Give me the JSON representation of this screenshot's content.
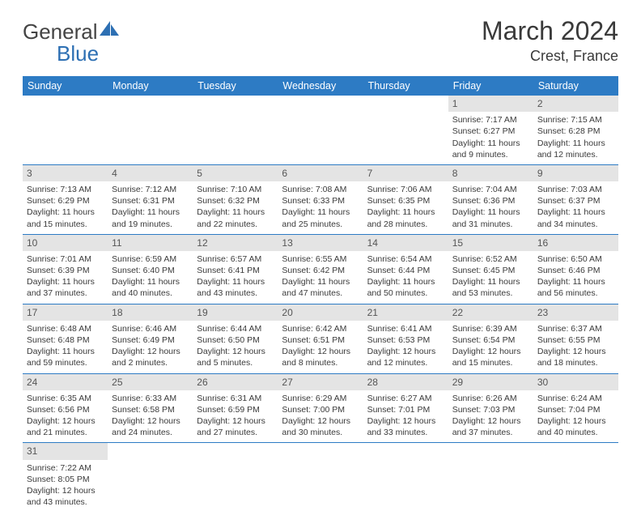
{
  "brand": {
    "part1": "General",
    "part2": "Blue"
  },
  "title": "March 2024",
  "location": "Crest, France",
  "colors": {
    "accent": "#2d7bc4",
    "daynum_bg": "#e4e4e4",
    "text": "#3a3a3a"
  },
  "weekdays": [
    "Sunday",
    "Monday",
    "Tuesday",
    "Wednesday",
    "Thursday",
    "Friday",
    "Saturday"
  ],
  "weeks": [
    [
      null,
      null,
      null,
      null,
      null,
      {
        "n": "1",
        "sr": "7:17 AM",
        "ss": "6:27 PM",
        "dl": "11 hours and 9 minutes."
      },
      {
        "n": "2",
        "sr": "7:15 AM",
        "ss": "6:28 PM",
        "dl": "11 hours and 12 minutes."
      }
    ],
    [
      {
        "n": "3",
        "sr": "7:13 AM",
        "ss": "6:29 PM",
        "dl": "11 hours and 15 minutes."
      },
      {
        "n": "4",
        "sr": "7:12 AM",
        "ss": "6:31 PM",
        "dl": "11 hours and 19 minutes."
      },
      {
        "n": "5",
        "sr": "7:10 AM",
        "ss": "6:32 PM",
        "dl": "11 hours and 22 minutes."
      },
      {
        "n": "6",
        "sr": "7:08 AM",
        "ss": "6:33 PM",
        "dl": "11 hours and 25 minutes."
      },
      {
        "n": "7",
        "sr": "7:06 AM",
        "ss": "6:35 PM",
        "dl": "11 hours and 28 minutes."
      },
      {
        "n": "8",
        "sr": "7:04 AM",
        "ss": "6:36 PM",
        "dl": "11 hours and 31 minutes."
      },
      {
        "n": "9",
        "sr": "7:03 AM",
        "ss": "6:37 PM",
        "dl": "11 hours and 34 minutes."
      }
    ],
    [
      {
        "n": "10",
        "sr": "7:01 AM",
        "ss": "6:39 PM",
        "dl": "11 hours and 37 minutes."
      },
      {
        "n": "11",
        "sr": "6:59 AM",
        "ss": "6:40 PM",
        "dl": "11 hours and 40 minutes."
      },
      {
        "n": "12",
        "sr": "6:57 AM",
        "ss": "6:41 PM",
        "dl": "11 hours and 43 minutes."
      },
      {
        "n": "13",
        "sr": "6:55 AM",
        "ss": "6:42 PM",
        "dl": "11 hours and 47 minutes."
      },
      {
        "n": "14",
        "sr": "6:54 AM",
        "ss": "6:44 PM",
        "dl": "11 hours and 50 minutes."
      },
      {
        "n": "15",
        "sr": "6:52 AM",
        "ss": "6:45 PM",
        "dl": "11 hours and 53 minutes."
      },
      {
        "n": "16",
        "sr": "6:50 AM",
        "ss": "6:46 PM",
        "dl": "11 hours and 56 minutes."
      }
    ],
    [
      {
        "n": "17",
        "sr": "6:48 AM",
        "ss": "6:48 PM",
        "dl": "11 hours and 59 minutes."
      },
      {
        "n": "18",
        "sr": "6:46 AM",
        "ss": "6:49 PM",
        "dl": "12 hours and 2 minutes."
      },
      {
        "n": "19",
        "sr": "6:44 AM",
        "ss": "6:50 PM",
        "dl": "12 hours and 5 minutes."
      },
      {
        "n": "20",
        "sr": "6:42 AM",
        "ss": "6:51 PM",
        "dl": "12 hours and 8 minutes."
      },
      {
        "n": "21",
        "sr": "6:41 AM",
        "ss": "6:53 PM",
        "dl": "12 hours and 12 minutes."
      },
      {
        "n": "22",
        "sr": "6:39 AM",
        "ss": "6:54 PM",
        "dl": "12 hours and 15 minutes."
      },
      {
        "n": "23",
        "sr": "6:37 AM",
        "ss": "6:55 PM",
        "dl": "12 hours and 18 minutes."
      }
    ],
    [
      {
        "n": "24",
        "sr": "6:35 AM",
        "ss": "6:56 PM",
        "dl": "12 hours and 21 minutes."
      },
      {
        "n": "25",
        "sr": "6:33 AM",
        "ss": "6:58 PM",
        "dl": "12 hours and 24 minutes."
      },
      {
        "n": "26",
        "sr": "6:31 AM",
        "ss": "6:59 PM",
        "dl": "12 hours and 27 minutes."
      },
      {
        "n": "27",
        "sr": "6:29 AM",
        "ss": "7:00 PM",
        "dl": "12 hours and 30 minutes."
      },
      {
        "n": "28",
        "sr": "6:27 AM",
        "ss": "7:01 PM",
        "dl": "12 hours and 33 minutes."
      },
      {
        "n": "29",
        "sr": "6:26 AM",
        "ss": "7:03 PM",
        "dl": "12 hours and 37 minutes."
      },
      {
        "n": "30",
        "sr": "6:24 AM",
        "ss": "7:04 PM",
        "dl": "12 hours and 40 minutes."
      }
    ],
    [
      {
        "n": "31",
        "sr": "7:22 AM",
        "ss": "8:05 PM",
        "dl": "12 hours and 43 minutes."
      },
      null,
      null,
      null,
      null,
      null,
      null
    ]
  ],
  "labels": {
    "sunrise": "Sunrise: ",
    "sunset": "Sunset: ",
    "daylight": "Daylight: "
  }
}
